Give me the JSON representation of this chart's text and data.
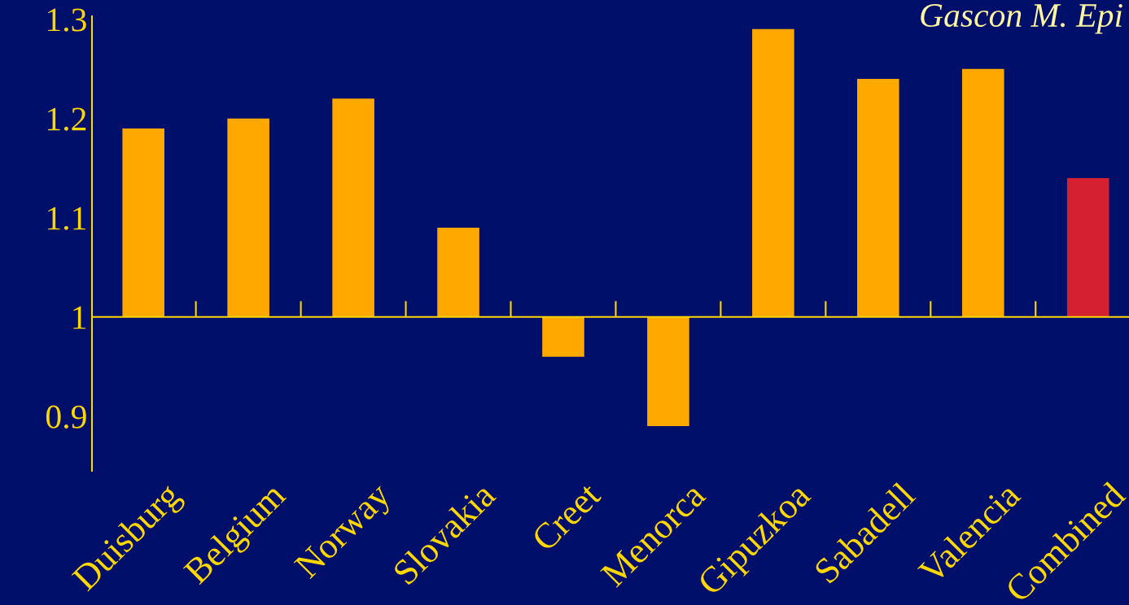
{
  "chart_data": {
    "type": "bar",
    "categories": [
      "Duisburg",
      "Belgium",
      "Norway",
      "Slovakia",
      "Creet",
      "Menorca",
      "Gipuzkoa",
      "Sabadell",
      "Valencia",
      "Combined"
    ],
    "base": [
      1,
      1,
      1,
      1,
      1,
      1,
      1,
      1,
      1,
      1
    ],
    "values": [
      0.19,
      0.2,
      0.22,
      0.09,
      -0.04,
      -0.11,
      0.29,
      0.24,
      0.25,
      0.14
    ],
    "colors": [
      "#ffa800",
      "#ffa800",
      "#ffa800",
      "#ffa800",
      "#ffa800",
      "#ffa800",
      "#ffa800",
      "#ffa800",
      "#ffa800",
      "#d42030"
    ],
    "ylim": [
      0.845,
      1.303
    ],
    "yticks": [
      0.9,
      1,
      1.1,
      1.2,
      1.3
    ],
    "annotations": [
      "Gascon M. Epi"
    ],
    "ref_lines": [
      {
        "axis": "y",
        "value": 1,
        "color": "#ffd700"
      }
    ],
    "grid": false,
    "legend": false
  }
}
